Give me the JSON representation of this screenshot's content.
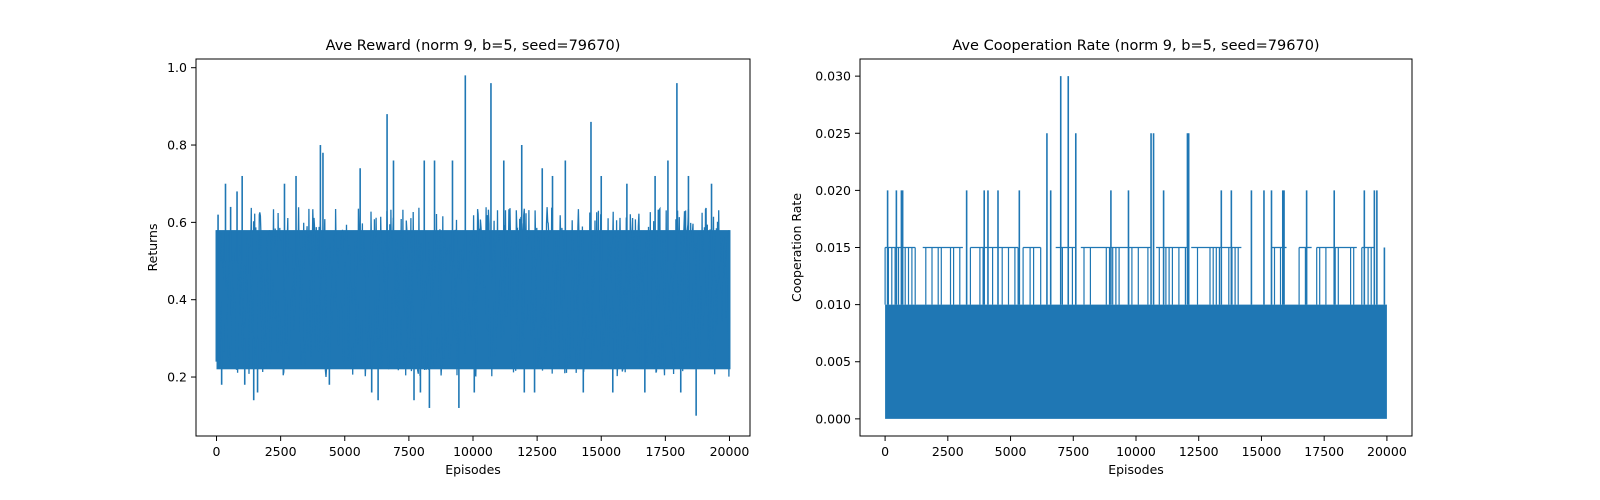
{
  "chart_data": [
    {
      "type": "line",
      "title": "Ave Reward (norm 9, b=5, seed=79670)",
      "xlabel": "Episodes",
      "ylabel": "Returns",
      "xlim": [
        -800,
        20800
      ],
      "ylim": [
        0.0475,
        1.0225
      ],
      "x_ticks": [
        0,
        2500,
        5000,
        7500,
        10000,
        12500,
        15000,
        17500,
        20000
      ],
      "y_ticks": [
        0.2,
        0.4,
        0.6,
        0.8,
        1.0
      ],
      "y_tick_labels": [
        "0.2",
        "0.4",
        "0.6",
        "0.8",
        "1.0"
      ],
      "color": "#1f77b4",
      "series": [
        {
          "name": "Ave Reward",
          "x_range": [
            0,
            20000
          ],
          "dense_band": [
            0.22,
            0.58
          ],
          "envelope": [
            0.2,
            0.64
          ],
          "spikes": [
            [
              60,
              0.62
            ],
            [
              200,
              0.18
            ],
            [
              350,
              0.7
            ],
            [
              550,
              0.64
            ],
            [
              800,
              0.68
            ],
            [
              1000,
              0.72
            ],
            [
              1100,
              0.18
            ],
            [
              1450,
              0.14
            ],
            [
              1600,
              0.16
            ],
            [
              2650,
              0.7
            ],
            [
              3100,
              0.72
            ],
            [
              4050,
              0.8
            ],
            [
              4150,
              0.78
            ],
            [
              4400,
              0.18
            ],
            [
              5600,
              0.74
            ],
            [
              6050,
              0.16
            ],
            [
              6300,
              0.14
            ],
            [
              6650,
              0.88
            ],
            [
              6900,
              0.76
            ],
            [
              7700,
              0.14
            ],
            [
              7950,
              0.16
            ],
            [
              8100,
              0.76
            ],
            [
              8300,
              0.12
            ],
            [
              8500,
              0.76
            ],
            [
              9200,
              0.76
            ],
            [
              9450,
              0.12
            ],
            [
              9700,
              0.98
            ],
            [
              10050,
              0.16
            ],
            [
              10700,
              0.96
            ],
            [
              11200,
              0.76
            ],
            [
              11900,
              0.8
            ],
            [
              12000,
              0.16
            ],
            [
              12400,
              0.16
            ],
            [
              12700,
              0.74
            ],
            [
              13100,
              0.72
            ],
            [
              13600,
              0.76
            ],
            [
              14300,
              0.16
            ],
            [
              14600,
              0.86
            ],
            [
              15000,
              0.72
            ],
            [
              15450,
              0.16
            ],
            [
              16000,
              0.7
            ],
            [
              16700,
              0.16
            ],
            [
              17100,
              0.72
            ],
            [
              17600,
              0.76
            ],
            [
              17950,
              0.96
            ],
            [
              18100,
              0.16
            ],
            [
              18400,
              0.72
            ],
            [
              18700,
              0.1
            ],
            [
              19300,
              0.7
            ]
          ]
        }
      ]
    },
    {
      "type": "line",
      "title": "Ave Cooperation Rate (norm 9, b=5, seed=79670)",
      "xlabel": "Episodes",
      "ylabel": "Cooperation Rate",
      "xlim": [
        -1000,
        21000
      ],
      "ylim": [
        -0.0015,
        0.0315
      ],
      "x_ticks": [
        0,
        2500,
        5000,
        7500,
        10000,
        12500,
        15000,
        17500,
        20000
      ],
      "y_ticks": [
        0.0,
        0.005,
        0.01,
        0.015,
        0.02,
        0.025,
        0.03
      ],
      "y_tick_labels": [
        "0.000",
        "0.005",
        "0.010",
        "0.015",
        "0.020",
        "0.025",
        "0.030"
      ],
      "color": "#1f77b4",
      "series": [
        {
          "name": "Ave Cooperation Rate",
          "x_range": [
            0,
            20000
          ],
          "dense_band": [
            0.0,
            0.01
          ],
          "secondary_band_level": 0.015,
          "secondary_band_segments": [
            [
              0,
              1200
            ],
            [
              1500,
              3100
            ],
            [
              3400,
              5300
            ],
            [
              5500,
              6200
            ],
            [
              6800,
              7600
            ],
            [
              7800,
              10600
            ],
            [
              10800,
              12100
            ],
            [
              12200,
              14200
            ],
            [
              15400,
              16000
            ],
            [
              16500,
              17000
            ],
            [
              17200,
              18800
            ],
            [
              19000,
              19500
            ]
          ],
          "spikes": [
            [
              100,
              0.02
            ],
            [
              450,
              0.02
            ],
            [
              650,
              0.02
            ],
            [
              700,
              0.02
            ],
            [
              3250,
              0.02
            ],
            [
              3950,
              0.02
            ],
            [
              4100,
              0.02
            ],
            [
              4500,
              0.02
            ],
            [
              5350,
              0.02
            ],
            [
              6450,
              0.025
            ],
            [
              6600,
              0.02
            ],
            [
              7000,
              0.03
            ],
            [
              7300,
              0.03
            ],
            [
              7600,
              0.025
            ],
            [
              9000,
              0.02
            ],
            [
              9700,
              0.02
            ],
            [
              10600,
              0.025
            ],
            [
              10700,
              0.025
            ],
            [
              11100,
              0.02
            ],
            [
              12050,
              0.025
            ],
            [
              12100,
              0.025
            ],
            [
              13400,
              0.02
            ],
            [
              13800,
              0.02
            ],
            [
              14600,
              0.02
            ],
            [
              15100,
              0.02
            ],
            [
              15400,
              0.02
            ],
            [
              15850,
              0.02
            ],
            [
              15900,
              0.02
            ],
            [
              16800,
              0.02
            ],
            [
              17900,
              0.02
            ],
            [
              19100,
              0.02
            ],
            [
              19500,
              0.02
            ],
            [
              19600,
              0.02
            ],
            [
              19900,
              0.015
            ]
          ]
        }
      ]
    }
  ]
}
